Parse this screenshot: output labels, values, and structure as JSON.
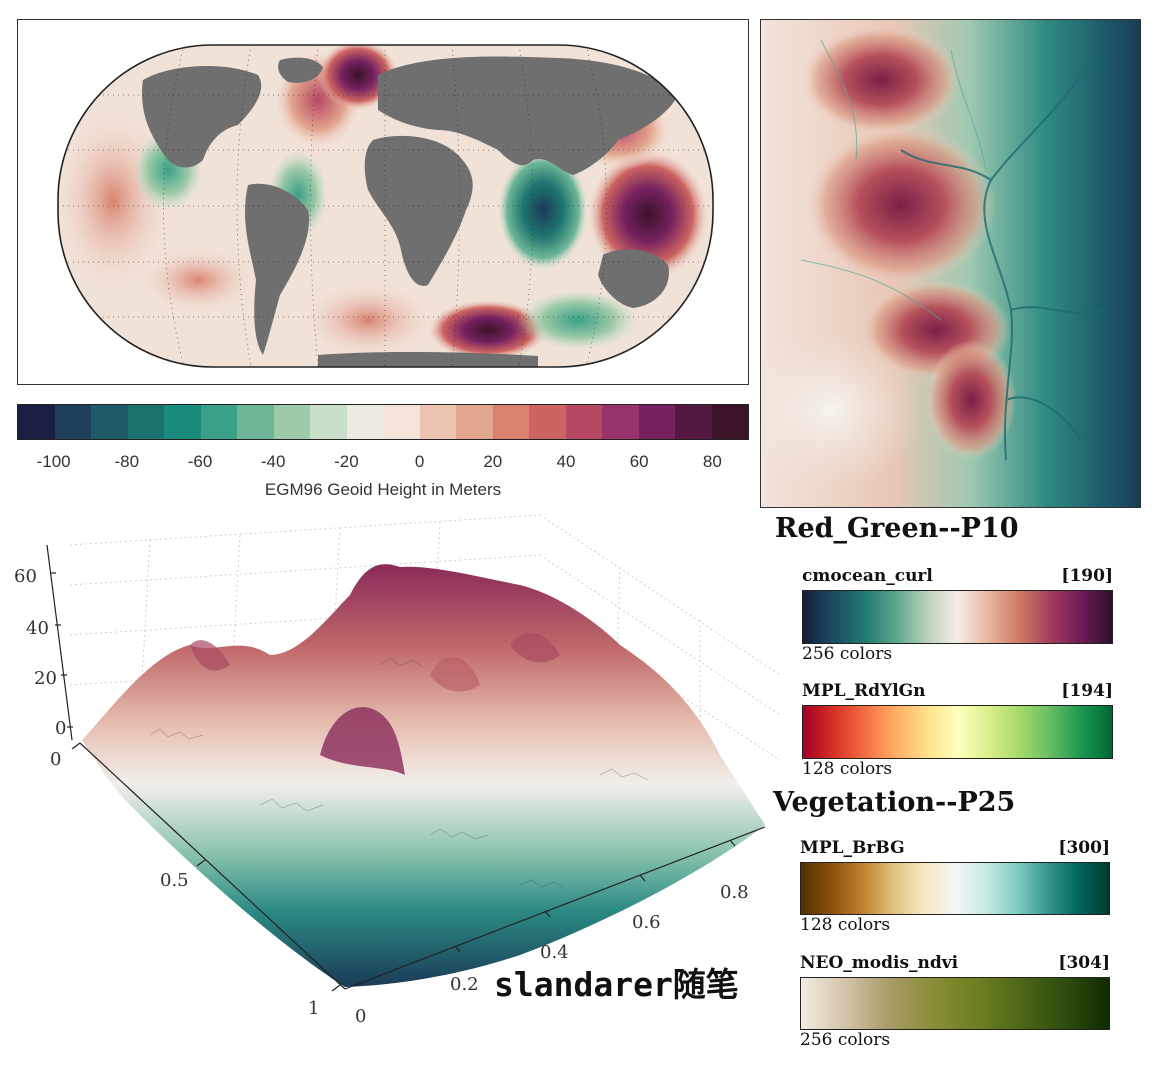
{
  "map": {
    "colorbar_ticks": [
      "-100",
      "-80",
      "-60",
      "-40",
      "-20",
      "0",
      "20",
      "40",
      "60",
      "80"
    ],
    "colorbar_label": "EGM96 Geoid Height in Meters",
    "colors": [
      "#1b1f45",
      "#1f3f5c",
      "#1f5a68",
      "#1c716e",
      "#1b8b7d",
      "#3aa088",
      "#6fb697",
      "#9dcaa8",
      "#c9dfc9",
      "#ece9e0",
      "#f4e3d9",
      "#ecc5b2",
      "#e2a58e",
      "#d9836f",
      "#cc6461",
      "#b64863",
      "#97326a",
      "#75215f",
      "#52183f",
      "#3b1228"
    ]
  },
  "terrain_panel_title": "Red_Green--P10",
  "surface3d": {
    "z_ticks": [
      "60",
      "40",
      "20",
      "0"
    ],
    "left_axis_ticks": [
      "0",
      "0.5",
      "1"
    ],
    "right_axis_ticks": [
      "0",
      "0.2",
      "0.4",
      "0.6",
      "0.8"
    ],
    "watermark": "slandarer随笔"
  },
  "vegetation_title": "Vegetation--P25",
  "colormaps": [
    {
      "name": "cmocean_curl",
      "index": "[190]",
      "count": "256 colors",
      "stops": [
        "#171b3c",
        "#1c4c60",
        "#1f7a72",
        "#5aa68a",
        "#b8d1b7",
        "#f7ede9",
        "#e8b69e",
        "#cf7a66",
        "#a43d5d",
        "#6f1a57",
        "#30102d"
      ]
    },
    {
      "name": "MPL_RdYlGn",
      "index": "[194]",
      "count": "128 colors",
      "stops": [
        "#a50026",
        "#d73027",
        "#f46d43",
        "#fdae61",
        "#fee08b",
        "#ffffbf",
        "#d9ef8b",
        "#a6d96a",
        "#66bd63",
        "#1a9850",
        "#006837"
      ]
    },
    {
      "name": "MPL_BrBG",
      "index": "[300]",
      "count": "128 colors",
      "stops": [
        "#543005",
        "#8c510a",
        "#bf812d",
        "#dfc27d",
        "#f6e8c3",
        "#f5f5f5",
        "#c7eae5",
        "#80cdc1",
        "#35978f",
        "#01665e",
        "#003c30"
      ]
    },
    {
      "name": "NEO_modis_ndvi",
      "index": "[304]",
      "count": "256 colors",
      "stops": [
        "#f2ece4",
        "#d3c4a8",
        "#a89c68",
        "#8a8d36",
        "#6d7f22",
        "#4d6718",
        "#2e4d0e",
        "#112a03"
      ]
    }
  ]
}
